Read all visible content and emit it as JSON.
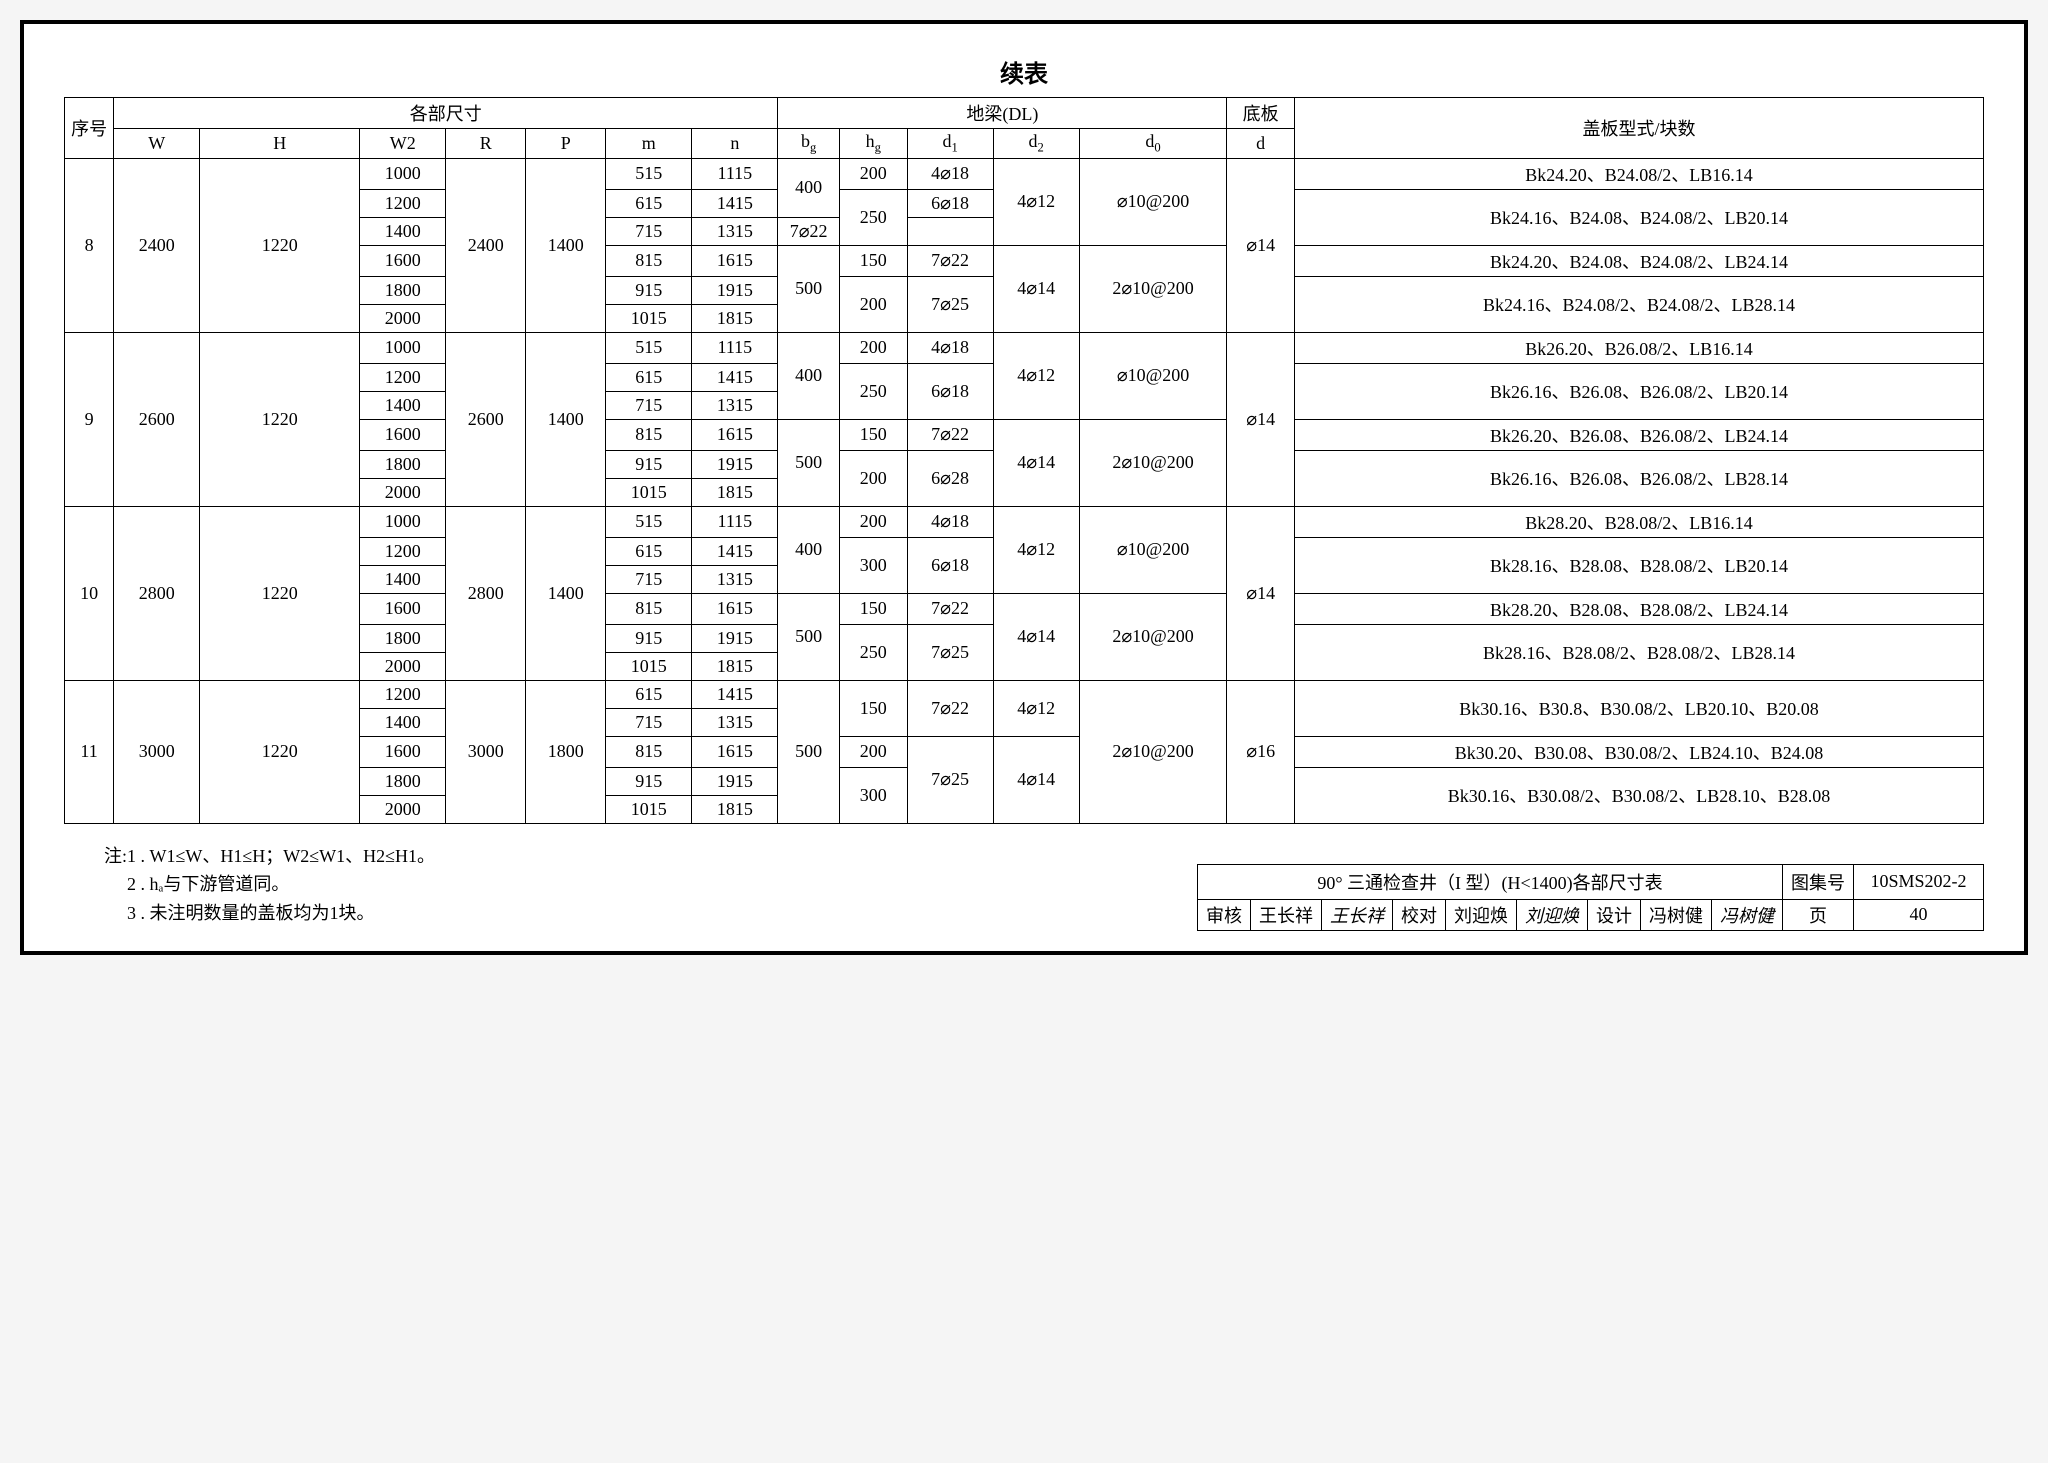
{
  "title": "续表",
  "headers": {
    "seq": "序号",
    "dims_group": "各部尺寸",
    "beam_group": "地梁(DL)",
    "base": "底板",
    "cover": "盖板型式/块数",
    "W": "W",
    "H": "H",
    "W2": "W2",
    "R": "R",
    "P": "P",
    "m": "m",
    "n": "n",
    "bg": "bₐ",
    "hg": "hₐ",
    "d1": "d₁",
    "d2": "d₂",
    "d0": "d₀",
    "d": "d"
  },
  "groups": [
    {
      "seq": "8",
      "W": "2400",
      "H": "1220",
      "R": "2400",
      "P": "1400",
      "d": "⌀14",
      "rows": [
        {
          "W2": "1000",
          "m": "515",
          "n": "1115",
          "bg": "400",
          "hg": "200",
          "d1": "4⌀18",
          "d2": "4⌀12",
          "d0": "⌀10@200",
          "cover": "Bk24.20、B24.08/2、LB16.14",
          "bg_span": 2,
          "d2_span": 3,
          "d0_span": 3,
          "cover_span": 1
        },
        {
          "W2": "1200",
          "m": "615",
          "n": "1415",
          "hg": "250",
          "d1": "6⌀18",
          "hg_span": 2,
          "cover": "Bk24.16、B24.08、B24.08/2、LB20.14",
          "cover_span": 2
        },
        {
          "W2": "1400",
          "m": "715",
          "n": "1315",
          "d1": "7⌀22"
        },
        {
          "W2": "1600",
          "m": "815",
          "n": "1615",
          "bg": "500",
          "hg": "150",
          "d1": "7⌀22",
          "d2": "4⌀14",
          "d0": "2⌀10@200",
          "bg_span": 3,
          "d2_span": 3,
          "d0_span": 3,
          "cover": "Bk24.20、B24.08、B24.08/2、LB24.14",
          "cover_span": 1
        },
        {
          "W2": "1800",
          "m": "915",
          "n": "1915",
          "hg": "200",
          "d1": "7⌀25",
          "hg_span": 2,
          "d1_span": 2,
          "cover": "Bk24.16、B24.08/2、B24.08/2、LB28.14",
          "cover_span": 2
        },
        {
          "W2": "2000",
          "m": "1015",
          "n": "1815"
        }
      ]
    },
    {
      "seq": "9",
      "W": "2600",
      "H": "1220",
      "R": "2600",
      "P": "1400",
      "d": "⌀14",
      "rows": [
        {
          "W2": "1000",
          "m": "515",
          "n": "1115",
          "bg": "400",
          "hg": "200",
          "d1": "4⌀18",
          "d2": "4⌀12",
          "d0": "⌀10@200",
          "bg_span": 3,
          "d2_span": 3,
          "d0_span": 3,
          "cover": "Bk26.20、B26.08/2、LB16.14",
          "cover_span": 1
        },
        {
          "W2": "1200",
          "m": "615",
          "n": "1415",
          "hg": "250",
          "d1": "6⌀18",
          "hg_span": 2,
          "d1_span": 2,
          "cover": "Bk26.16、B26.08、B26.08/2、LB20.14",
          "cover_span": 2
        },
        {
          "W2": "1400",
          "m": "715",
          "n": "1315"
        },
        {
          "W2": "1600",
          "m": "815",
          "n": "1615",
          "bg": "500",
          "hg": "150",
          "d1": "7⌀22",
          "d2": "4⌀14",
          "d0": "2⌀10@200",
          "bg_span": 3,
          "d2_span": 3,
          "d0_span": 3,
          "cover": "Bk26.20、B26.08、B26.08/2、LB24.14",
          "cover_span": 1
        },
        {
          "W2": "1800",
          "m": "915",
          "n": "1915",
          "hg": "200",
          "d1": "6⌀28",
          "hg_span": 2,
          "d1_span": 2,
          "cover": "Bk26.16、B26.08、B26.08/2、LB28.14",
          "cover_span": 2
        },
        {
          "W2": "2000",
          "m": "1015",
          "n": "1815"
        }
      ]
    },
    {
      "seq": "10",
      "W": "2800",
      "H": "1220",
      "R": "2800",
      "P": "1400",
      "d": "⌀14",
      "rows": [
        {
          "W2": "1000",
          "m": "515",
          "n": "1115",
          "bg": "400",
          "hg": "200",
          "d1": "4⌀18",
          "d2": "4⌀12",
          "d0": "⌀10@200",
          "bg_span": 3,
          "d2_span": 3,
          "d0_span": 3,
          "cover": "Bk28.20、B28.08/2、LB16.14",
          "cover_span": 1
        },
        {
          "W2": "1200",
          "m": "615",
          "n": "1415",
          "hg": "300",
          "d1": "6⌀18",
          "hg_span": 2,
          "d1_span": 2,
          "cover": "Bk28.16、B28.08、B28.08/2、LB20.14",
          "cover_span": 2
        },
        {
          "W2": "1400",
          "m": "715",
          "n": "1315"
        },
        {
          "W2": "1600",
          "m": "815",
          "n": "1615",
          "bg": "500",
          "hg": "150",
          "d1": "7⌀22",
          "d2": "4⌀14",
          "d0": "2⌀10@200",
          "bg_span": 3,
          "d2_span": 3,
          "d0_span": 3,
          "cover": "Bk28.20、B28.08、B28.08/2、LB24.14",
          "cover_span": 1
        },
        {
          "W2": "1800",
          "m": "915",
          "n": "1915",
          "hg": "250",
          "d1": "7⌀25",
          "hg_span": 2,
          "d1_span": 2,
          "cover": "Bk28.16、B28.08/2、B28.08/2、LB28.14",
          "cover_span": 2
        },
        {
          "W2": "2000",
          "m": "1015",
          "n": "1815"
        }
      ]
    },
    {
      "seq": "11",
      "W": "3000",
      "H": "1220",
      "R": "3000",
      "P": "1800",
      "d": "⌀16",
      "rows": [
        {
          "W2": "1200",
          "m": "615",
          "n": "1415",
          "bg": "500",
          "hg": "150",
          "d1": "7⌀22",
          "d2": "4⌀12",
          "d0": "2⌀10@200",
          "bg_span": 5,
          "hg_span": 2,
          "d1_span": 2,
          "d2_span": 2,
          "d0_span": 5,
          "cover": "Bk30.16、B30.8、B30.08/2、LB20.10、B20.08",
          "cover_span": 2
        },
        {
          "W2": "1400",
          "m": "715",
          "n": "1315"
        },
        {
          "W2": "1600",
          "m": "815",
          "n": "1615",
          "hg": "200",
          "d1": "7⌀25",
          "d2": "4⌀14",
          "d1_span": 3,
          "d2_span": 3,
          "cover": "Bk30.20、B30.08、B30.08/2、LB24.10、B24.08",
          "cover_span": 1
        },
        {
          "W2": "1800",
          "m": "915",
          "n": "1915",
          "hg": "300",
          "hg_span": 2,
          "cover": "Bk30.16、B30.08/2、B30.08/2、LB28.10、B28.08",
          "cover_span": 2
        },
        {
          "W2": "2000",
          "m": "1015",
          "n": "1815"
        }
      ]
    }
  ],
  "notes_label": "注:",
  "notes": [
    "1 . W1≤W、H1≤H；W2≤W1、H2≤H1。",
    "2 . hₐ与下游管道同。",
    "3 . 未注明数量的盖板均为1块。"
  ],
  "footer": {
    "title": "90° 三通检查井（I 型）(H<1400)各部尺寸表",
    "drawing_no_label": "图集号",
    "drawing_no": "10SMS202-2",
    "review_label": "审核",
    "review_name": "王长祥",
    "review_sig": "王长祥",
    "check_label": "校对",
    "check_name": "刘迎焕",
    "check_sig": "刘迎焕",
    "design_label": "设计",
    "design_name": "冯树健",
    "design_sig": "冯树健",
    "page_label": "页",
    "page_no": "40"
  },
  "col_widths": {
    "seq": 40,
    "W": 70,
    "H": 130,
    "W2": 70,
    "R": 65,
    "P": 65,
    "m": 70,
    "n": 70,
    "bg": 50,
    "hg": 55,
    "d1": 70,
    "d2": 70,
    "d0": 120,
    "d": 55,
    "cover": 560
  }
}
